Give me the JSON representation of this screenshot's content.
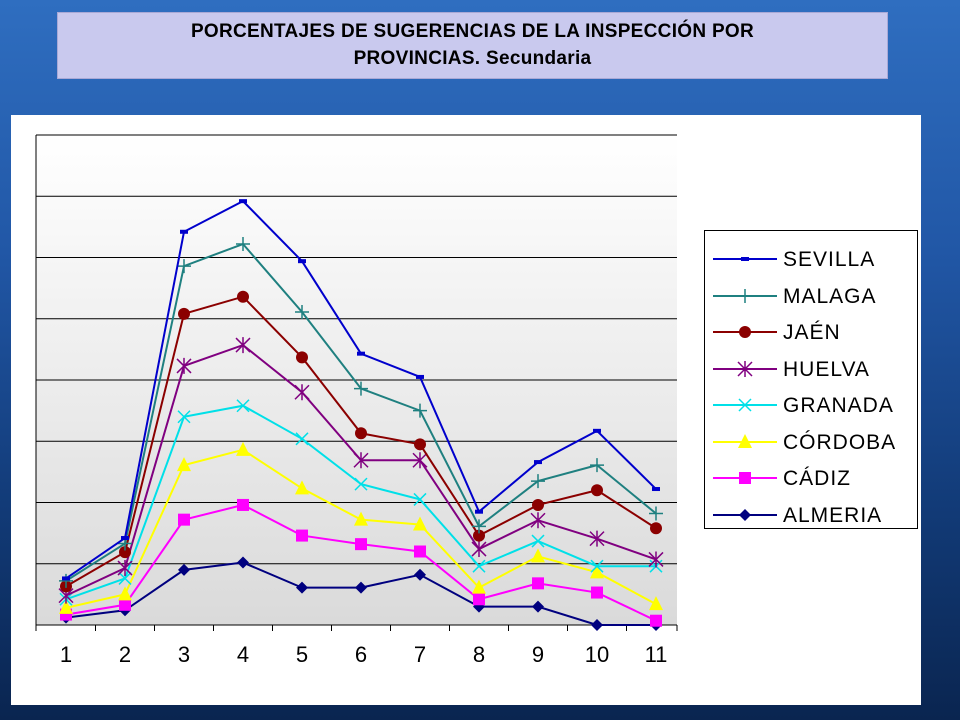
{
  "slide": {
    "title_line1": "PORCENTAJES DE SUGERENCIAS DE LA INSPECCIÓN POR",
    "title_line2": "PROVINCIAS.",
    "title_suffix": "Secundaria"
  },
  "chart_data": {
    "type": "line",
    "title": "",
    "xlabel": "",
    "ylabel": "",
    "categories": [
      "1",
      "2",
      "3",
      "4",
      "5",
      "6",
      "7",
      "8",
      "9",
      "10",
      "11"
    ],
    "y_gridlines": 8,
    "grid": true,
    "legend_position": "right",
    "y_unit": "stacked-share (relative units)",
    "series": [
      {
        "name": "SEVILLA",
        "color": "#0000cc",
        "marker": "dash",
        "values": [
          0.76,
          1.42,
          6.42,
          6.92,
          5.94,
          4.43,
          4.05,
          1.85,
          2.66,
          3.17,
          2.22
        ]
      },
      {
        "name": "MALAGA",
        "color": "#1f8080",
        "marker": "plus",
        "values": [
          0.72,
          1.33,
          5.86,
          6.22,
          5.11,
          3.86,
          3.5,
          1.61,
          2.35,
          2.61,
          1.82
        ]
      },
      {
        "name": "JAÉN",
        "color": "#8b0000",
        "marker": "circle",
        "values": [
          0.63,
          1.19,
          5.08,
          5.36,
          4.37,
          3.13,
          2.95,
          1.46,
          1.96,
          2.2,
          1.58
        ]
      },
      {
        "name": "HUELVA",
        "color": "#800080",
        "marker": "star",
        "values": [
          0.48,
          0.93,
          4.23,
          4.57,
          3.8,
          2.69,
          2.69,
          1.24,
          1.71,
          1.41,
          1.07
        ]
      },
      {
        "name": "GRANADA",
        "color": "#00e0e8",
        "marker": "x",
        "values": [
          0.42,
          0.76,
          3.4,
          3.58,
          3.04,
          2.3,
          2.05,
          0.96,
          1.37,
          0.96,
          0.96
        ]
      },
      {
        "name": "CÓRDOBA",
        "color": "#ffff00",
        "marker": "triangle",
        "values": [
          0.28,
          0.5,
          2.61,
          2.86,
          2.23,
          1.72,
          1.64,
          0.61,
          1.12,
          0.86,
          0.34
        ]
      },
      {
        "name": "CÁDIZ",
        "color": "#ff00ff",
        "marker": "square",
        "values": [
          0.17,
          0.33,
          1.72,
          1.96,
          1.46,
          1.32,
          1.2,
          0.42,
          0.68,
          0.53,
          0.07
        ]
      },
      {
        "name": "ALMERIA",
        "color": "#00007f",
        "marker": "diamond",
        "values": [
          0.12,
          0.24,
          0.9,
          1.02,
          0.61,
          0.61,
          0.82,
          0.3,
          0.3,
          0.0,
          0.0
        ]
      }
    ]
  }
}
